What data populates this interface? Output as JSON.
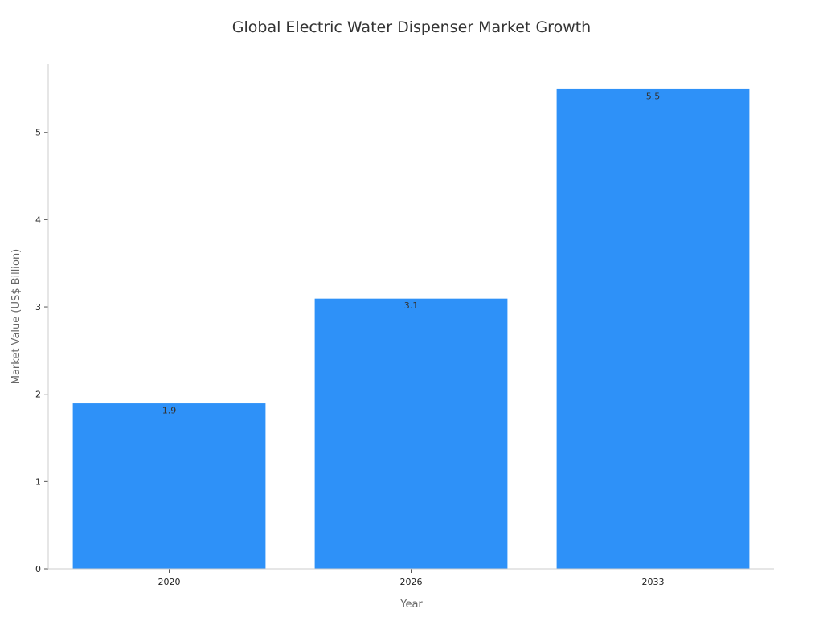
{
  "chart_data": {
    "type": "bar",
    "title": "Global Electric Water Dispenser Market Growth",
    "xlabel": "Year",
    "ylabel": "Market Value (US$ Billion)",
    "categories": [
      "2020",
      "2026",
      "2033"
    ],
    "values": [
      1.9,
      3.1,
      5.5
    ],
    "data_labels": [
      "1.9",
      "3.1",
      "5.5"
    ],
    "y_ticks": [
      0,
      1,
      2,
      3,
      4,
      5
    ],
    "y_tick_labels": [
      "0",
      "1",
      "2",
      "3",
      "4",
      "5"
    ],
    "ylim": [
      0,
      5.78
    ],
    "grid": false,
    "legend": "none",
    "bar_color": "#2e91f8"
  }
}
